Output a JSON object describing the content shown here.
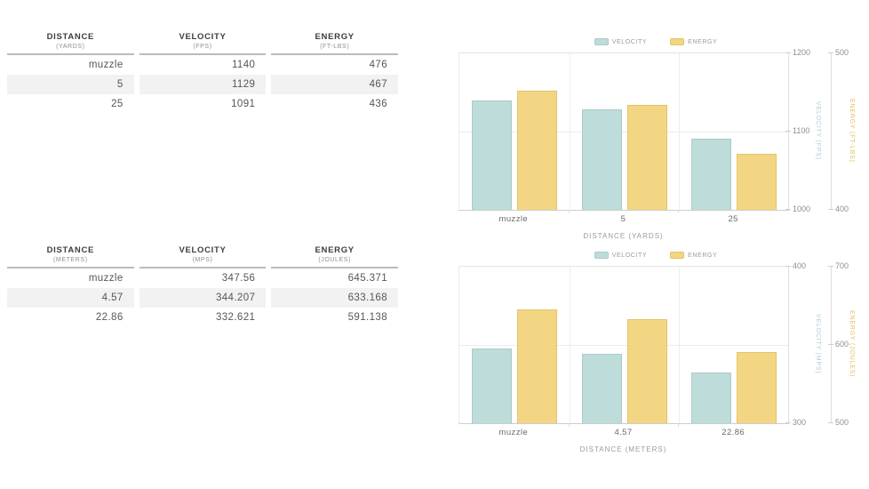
{
  "page": {
    "background": "#ffffff"
  },
  "palette": {
    "velocity_bar": "#bedcda",
    "velocity_bar_border": "#a9cbc9",
    "energy_bar": "#f3d683",
    "energy_bar_border": "#e4c267",
    "velocity_axis_text": "#a9ced6",
    "energy_axis_text": "#e5bd5c",
    "tick_text": "#8e8e8e",
    "row_stripe": "#f2f2f2"
  },
  "tables": [
    {
      "columns": [
        {
          "label": "DISTANCE",
          "unit": "(YARDS)"
        },
        {
          "label": "VELOCITY",
          "unit": "(FPS)"
        },
        {
          "label": "ENERGY",
          "unit": "(FT-LBS)"
        }
      ],
      "rows": [
        [
          "muzzle",
          "1140",
          "476"
        ],
        [
          "5",
          "1129",
          "467"
        ],
        [
          "25",
          "1091",
          "436"
        ]
      ]
    },
    {
      "columns": [
        {
          "label": "DISTANCE",
          "unit": "(METERS)"
        },
        {
          "label": "VELOCITY",
          "unit": "(MPS)"
        },
        {
          "label": "ENERGY",
          "unit": "(JOULES)"
        }
      ],
      "rows": [
        [
          "muzzle",
          "347.56",
          "645.371"
        ],
        [
          "4.57",
          "344.207",
          "633.168"
        ],
        [
          "22.86",
          "332.621",
          "591.138"
        ]
      ]
    }
  ],
  "chart_data": [
    {
      "type": "bar",
      "categories": [
        "muzzle",
        "5",
        "25"
      ],
      "xlabel": "DISTANCE (YARDS)",
      "legend_position": "top",
      "grid": "vertical category lines + horizontal midline",
      "series": [
        {
          "name": "VELOCITY",
          "axis": 0,
          "values": [
            1140,
            1129,
            1091
          ],
          "color": "#bedcda",
          "border": "#a9cbc9"
        },
        {
          "name": "ENERGY",
          "axis": 1,
          "values": [
            476,
            467,
            436
          ],
          "color": "#f3d683",
          "border": "#e4c267"
        }
      ],
      "axes": [
        {
          "label": "VELOCITY (FPS)",
          "min": 1000,
          "max": 1200,
          "ticks": [
            1200,
            1100,
            1000
          ],
          "color": "#a9ced6",
          "position": "right"
        },
        {
          "label": "ENERGY (FT-LBS)",
          "min": 400,
          "max": 500,
          "ticks": [
            500,
            400
          ],
          "color": "#e5bd5c",
          "position": "right"
        }
      ]
    },
    {
      "type": "bar",
      "categories": [
        "muzzle",
        "4.57",
        "22.86"
      ],
      "xlabel": "DISTANCE (METERS)",
      "legend_position": "top",
      "grid": "vertical category lines + horizontal midline",
      "series": [
        {
          "name": "VELOCITY",
          "axis": 0,
          "values": [
            347.56,
            344.207,
            332.621
          ],
          "color": "#bedcda",
          "border": "#a9cbc9"
        },
        {
          "name": "ENERGY",
          "axis": 1,
          "values": [
            645.371,
            633.168,
            591.138
          ],
          "color": "#f3d683",
          "border": "#e4c267"
        }
      ],
      "axes": [
        {
          "label": "VELOCITY (MPS)",
          "min": 300,
          "max": 400,
          "ticks": [
            400,
            300
          ],
          "color": "#a9ced6",
          "position": "right"
        },
        {
          "label": "ENERGY (JOULES)",
          "min": 500,
          "max": 700,
          "ticks": [
            700,
            600,
            500
          ],
          "color": "#e5bd5c",
          "position": "right"
        }
      ]
    }
  ]
}
